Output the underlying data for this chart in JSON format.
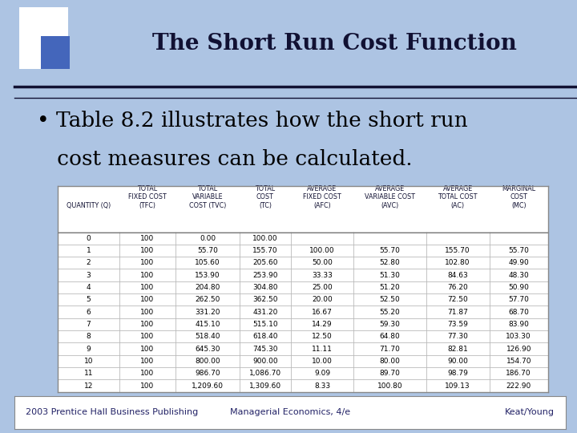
{
  "title": "The Short Run Cost Function",
  "bullet_line1": "• Table 8.2 illustrates how the short run",
  "bullet_line2": "   cost measures can be calculated.",
  "footer_left": "2003 Prentice Hall Business Publishing",
  "footer_center": "Managerial Economics, 4/e",
  "footer_right": "Keat/Young",
  "bg_color": "#adc4e3",
  "logo_outer_color": "white",
  "logo_inner_color": "#4466bb",
  "logo_bg_color": "#6688cc",
  "separator_color": "#111133",
  "footer_box_color": "white",
  "footer_text_color": "#222266",
  "table_headers_row1": [
    "",
    "TOTAL",
    "TOTAL",
    "TOTAL",
    "AVERAGE",
    "AVERAGE",
    "AVERAGE",
    "MARGINAL"
  ],
  "table_headers_row2": [
    "",
    "FIXED COST",
    "VARIABLE",
    "COST",
    "FIXED COST",
    "VARIABLE COST",
    "TOTAL COST",
    "COST"
  ],
  "table_headers_row3": [
    "QUANTITY (Q)",
    "(TFC)",
    "COST (TVC)",
    "(TC)",
    "(AFC)",
    "(AVC)",
    "(AC)",
    "(MC)"
  ],
  "table_data": [
    [
      "0",
      "100",
      "0.00",
      "100.00",
      "",
      "",
      "",
      ""
    ],
    [
      "1",
      "100",
      "55.70",
      "155.70",
      "100.00",
      "55.70",
      "155.70",
      "55.70"
    ],
    [
      "2",
      "100",
      "105.60",
      "205.60",
      "50.00",
      "52.80",
      "102.80",
      "49.90"
    ],
    [
      "3",
      "100",
      "153.90",
      "253.90",
      "33.33",
      "51.30",
      "84.63",
      "48.30"
    ],
    [
      "4",
      "100",
      "204.80",
      "304.80",
      "25.00",
      "51.20",
      "76.20",
      "50.90"
    ],
    [
      "5",
      "100",
      "262.50",
      "362.50",
      "20.00",
      "52.50",
      "72.50",
      "57.70"
    ],
    [
      "6",
      "100",
      "331.20",
      "431.20",
      "16.67",
      "55.20",
      "71.87",
      "68.70"
    ],
    [
      "7",
      "100",
      "415.10",
      "515.10",
      "14.29",
      "59.30",
      "73.59",
      "83.90"
    ],
    [
      "8",
      "100",
      "518.40",
      "618.40",
      "12.50",
      "64.80",
      "77.30",
      "103.30"
    ],
    [
      "9",
      "100",
      "645.30",
      "745.30",
      "11.11",
      "71.70",
      "82.81",
      "126.90"
    ],
    [
      "10",
      "100",
      "800.00",
      "900.00",
      "10.00",
      "80.00",
      "90.00",
      "154.70"
    ],
    [
      "11",
      "100",
      "986.70",
      "1,086.70",
      "9.09",
      "89.70",
      "98.79",
      "186.70"
    ],
    [
      "12",
      "100",
      "1,209.60",
      "1,309.60",
      "8.33",
      "100.80",
      "109.13",
      "222.90"
    ]
  ],
  "title_color": "#111133",
  "title_fontsize": 20,
  "bullet_fontsize": 19,
  "footer_fontsize": 8,
  "table_fontsize": 6.5,
  "header_fontsize": 5.8
}
